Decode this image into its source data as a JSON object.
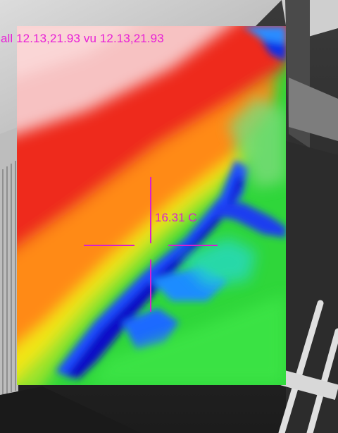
{
  "overlay": {
    "mode_readout": "all 12.13,21.93 vu 12.13,21.93",
    "center_temperature": "16.31 C"
  },
  "colors": {
    "overlay_text": "#e81fd6",
    "crosshair": "#d81fd0"
  },
  "icons": {
    "crosshair": "crosshair-icon"
  }
}
